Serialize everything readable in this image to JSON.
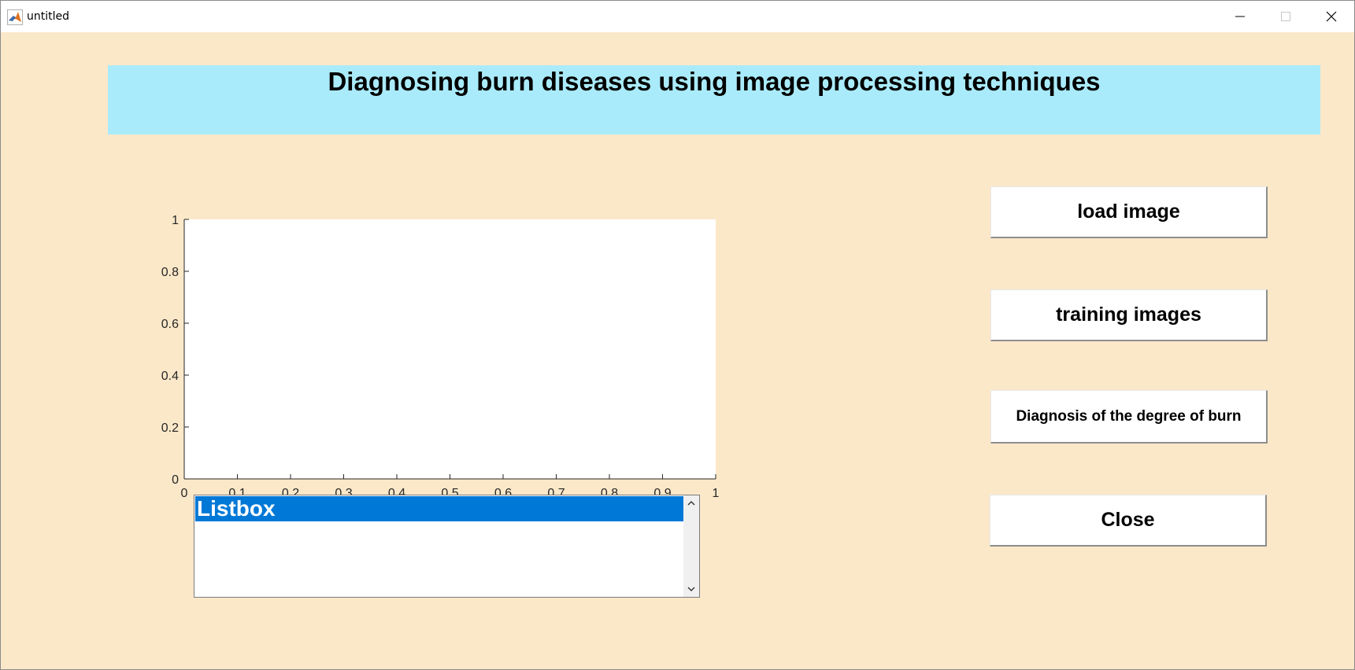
{
  "window": {
    "title": "untitled"
  },
  "header": {
    "title": "Diagnosing burn diseases using image processing techniques"
  },
  "axes": {
    "x_ticks": [
      "0",
      "0.1",
      "0.2",
      "0.3",
      "0.4",
      "0.5",
      "0.6",
      "0.7",
      "0.8",
      "0.9",
      "1"
    ],
    "y_ticks": [
      "0",
      "0.2",
      "0.4",
      "0.6",
      "0.8",
      "1"
    ]
  },
  "listbox": {
    "items": [
      {
        "label": "Listbox",
        "selected": true
      }
    ]
  },
  "buttons": {
    "load_image": "load image",
    "training_images": "training images",
    "diagnosis": "Diagnosis of the degree of burn",
    "close": "Close"
  },
  "colors": {
    "background": "#fbe8c9",
    "header_panel": "#aaebfb",
    "listbox_selection": "#0078d7"
  }
}
